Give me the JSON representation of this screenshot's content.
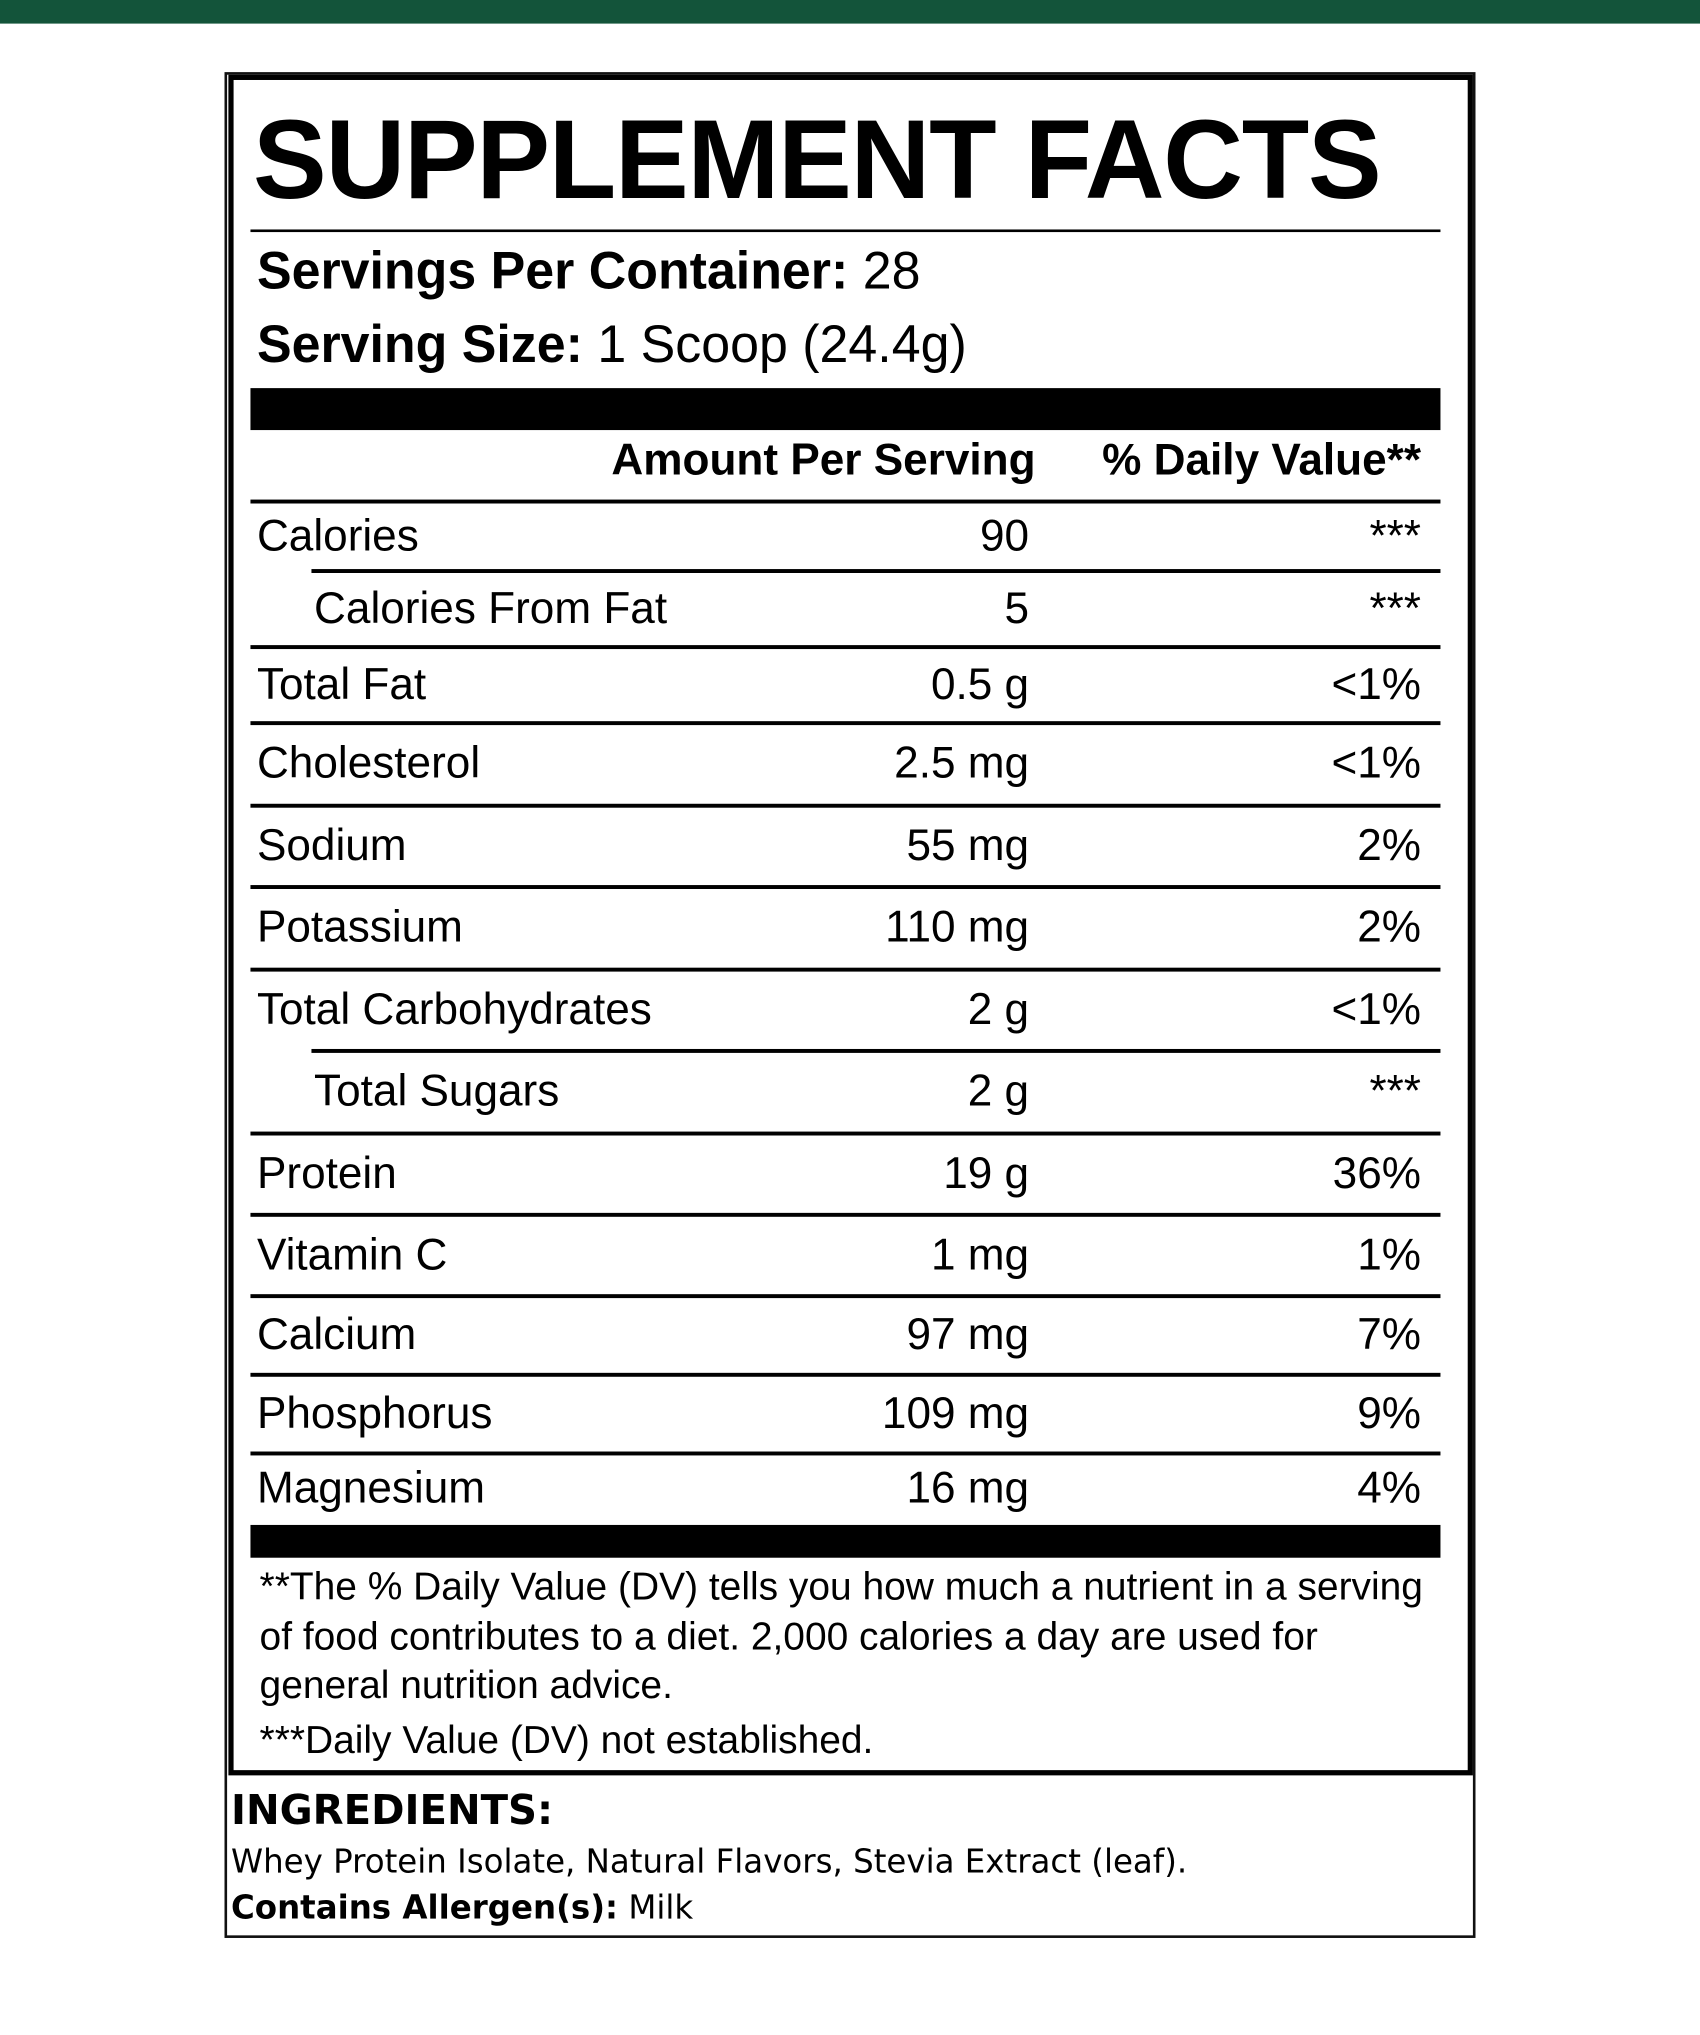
{
  "title": "SUPPLEMENT FACTS",
  "servings_per_container": {
    "label": "Servings Per Container:",
    "value": "28"
  },
  "serving_size": {
    "label": "Serving Size:",
    "value": "1 Scoop (24.4g)"
  },
  "header": {
    "amount": "Amount Per Serving",
    "daily_value": "% Daily Value**"
  },
  "rows": [
    {
      "name": "Calories",
      "amount": "90",
      "daily_value": "***"
    },
    {
      "name": "Calories From Fat",
      "amount": "5",
      "daily_value": "***"
    },
    {
      "name": "Total Fat",
      "amount": "0.5 g",
      "daily_value": "<1%"
    },
    {
      "name": "Cholesterol",
      "amount": "2.5 mg",
      "daily_value": "<1%"
    },
    {
      "name": "Sodium",
      "amount": "55 mg",
      "daily_value": "2%"
    },
    {
      "name": "Potassium",
      "amount": "110 mg",
      "daily_value": "2%"
    },
    {
      "name": "Total Carbohydrates",
      "amount": "2 g",
      "daily_value": "<1%"
    },
    {
      "name": "Total Sugars",
      "amount": "2 g",
      "daily_value": "***"
    },
    {
      "name": "Protein",
      "amount": "19 g",
      "daily_value": "36%"
    },
    {
      "name": "Vitamin C",
      "amount": "1 mg",
      "daily_value": "1%"
    },
    {
      "name": "Calcium",
      "amount": "97 mg",
      "daily_value": "7%"
    },
    {
      "name": "Phosphorus",
      "amount": "109 mg",
      "daily_value": "9%"
    },
    {
      "name": "Magnesium",
      "amount": "16 mg",
      "daily_value": "4%"
    }
  ],
  "footnotes": [
    "**The % Daily Value (DV) tells you how much a nutrient in a serving of food contributes to a diet. 2,000 calories a day are used for general nutrition advice.",
    "***Daily Value (DV) not established."
  ],
  "ingredients": {
    "label": "INGREDIENTS:",
    "text": "Whey Protein Isolate, Natural Flavors, Stevia Extract (leaf).",
    "allergen_label": "Contains Allergen(s):",
    "allergen_value": "Milk"
  }
}
